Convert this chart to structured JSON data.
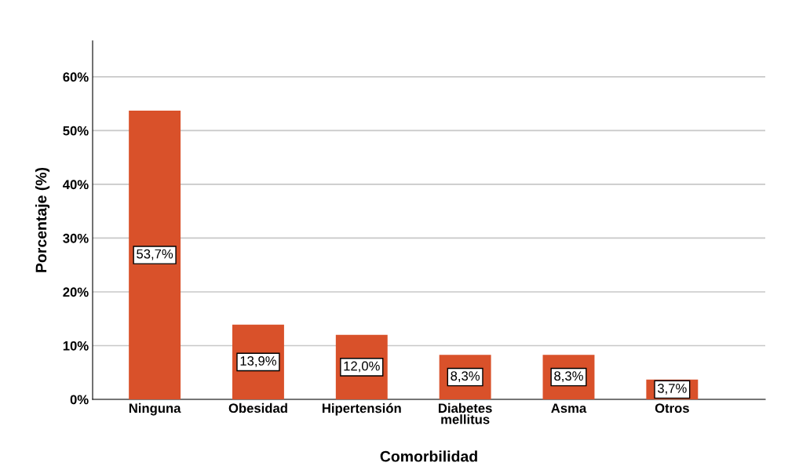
{
  "chart_data": {
    "type": "bar",
    "xlabel": "Comorbilidad",
    "ylabel": "Porcentaje (%)",
    "categories": [
      "Ninguna",
      "Obesidad",
      "Hipertensión",
      "Diabetes\nmellitus",
      "Asma",
      "Otros"
    ],
    "values": [
      53.7,
      13.9,
      12.0,
      8.3,
      8.3,
      3.7
    ],
    "value_labels": [
      "53,7%",
      "13,9%",
      "12,0%",
      "8,3%",
      "8,3%",
      "3,7%"
    ],
    "color": "#d9512a",
    "ylim": [
      0,
      66.7
    ],
    "yticks": [
      {
        "value": 0,
        "label": "0%"
      },
      {
        "value": 10,
        "label": "10%"
      },
      {
        "value": 20,
        "label": "20%"
      },
      {
        "value": 30,
        "label": "30%"
      },
      {
        "value": 40,
        "label": "40%"
      },
      {
        "value": 50,
        "label": "50%"
      },
      {
        "value": 60,
        "label": "60%"
      }
    ],
    "grid": "y"
  }
}
